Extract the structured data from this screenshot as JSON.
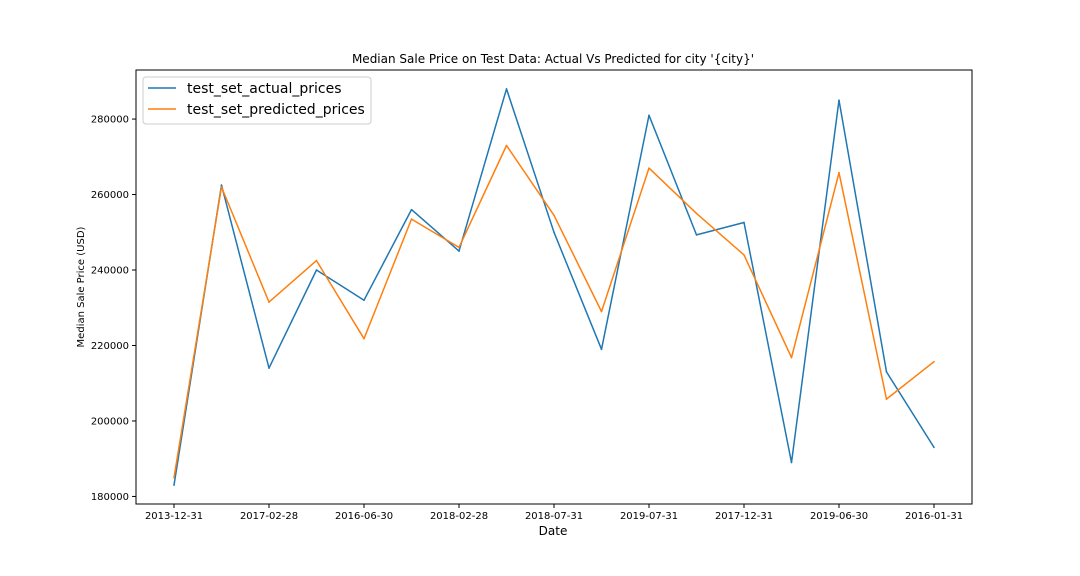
{
  "chart_data": {
    "type": "line",
    "title": "Median Sale Price on Test Data: Actual Vs Predicted for city '{city}'",
    "xlabel": "Date",
    "ylabel": "Median Sale Price (USD)",
    "ylim": [
      178000,
      293000
    ],
    "yticks": [
      180000,
      200000,
      220000,
      240000,
      260000,
      280000
    ],
    "x": [
      "2013-12-31",
      "",
      "2017-02-28",
      "",
      "2016-06-30",
      "",
      "2018-02-28",
      "",
      "2018-07-31",
      "",
      "2019-07-31",
      "",
      "2017-12-31",
      "",
      "2019-06-30",
      "",
      "2016-01-31"
    ],
    "grid": false,
    "legend_position": "top-left",
    "series": [
      {
        "name": "test_set_actual_prices",
        "color": "#1f77b4",
        "values": [
          183000,
          262500,
          214000,
          240000,
          232000,
          256000,
          245000,
          288000,
          250000,
          219000,
          281000,
          249300,
          252600,
          189000,
          285000,
          213000,
          193000
        ]
      },
      {
        "name": "test_set_predicted_prices",
        "color": "#ff7f0e",
        "values": [
          185000,
          262000,
          231500,
          242500,
          221800,
          253500,
          246000,
          273000,
          254500,
          229000,
          267000,
          255000,
          244000,
          216800,
          265800,
          205800,
          215700
        ]
      }
    ]
  }
}
